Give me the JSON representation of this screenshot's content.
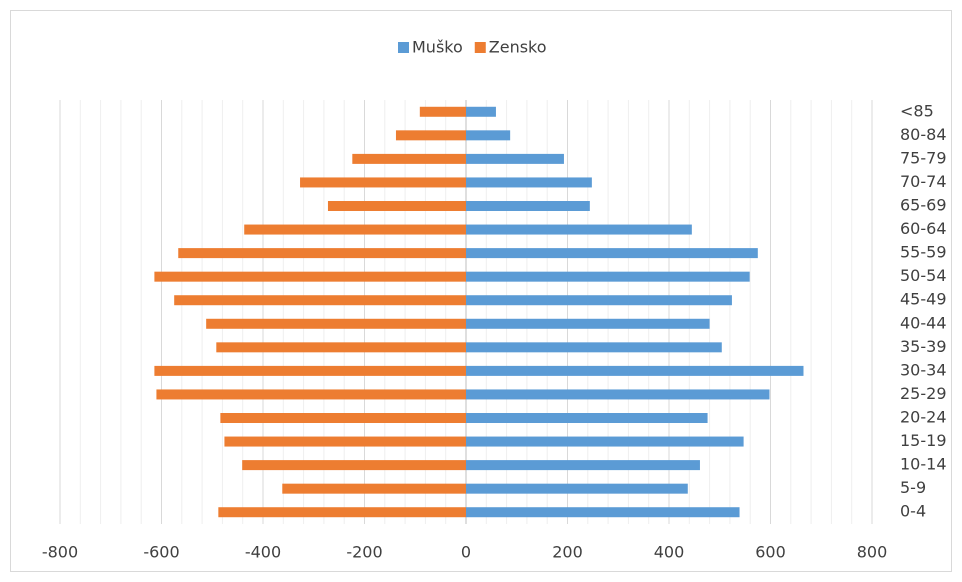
{
  "chart_data": {
    "type": "pyramid",
    "categories": [
      "0-4",
      "5-9",
      "10-14",
      "15-19",
      "20-24",
      "25-29",
      "30-34",
      "35-39",
      "40-44",
      "45-49",
      "50-54",
      "55-59",
      "60-64",
      "65-69",
      "70-74",
      "75-79",
      "80-84",
      "<85"
    ],
    "series": [
      {
        "name": "Muško",
        "color": "#5b9bd5",
        "values": [
          539,
          437,
          461,
          547,
          476,
          598,
          665,
          504,
          480,
          524,
          559,
          575,
          445,
          244,
          248,
          193,
          87,
          59
        ]
      },
      {
        "name": "Zensko",
        "color": "#ed7d31",
        "values": [
          -488,
          -362,
          -441,
          -476,
          -484,
          -610,
          -614,
          -492,
          -512,
          -575,
          -614,
          -567,
          -437,
          -272,
          -327,
          -224,
          -138,
          -91
        ]
      }
    ],
    "xlim": [
      -800,
      800
    ],
    "xticks": [
      -800,
      -600,
      -400,
      -200,
      0,
      200,
      400,
      600,
      800
    ],
    "xminorticks": [
      -760,
      -720,
      -680,
      -640,
      -560,
      -520,
      -480,
      -440,
      -360,
      -320,
      -280,
      -240,
      -160,
      -120,
      -80,
      -40,
      40,
      80,
      120,
      160,
      240,
      280,
      320,
      360,
      440,
      480,
      520,
      560,
      640,
      680,
      720,
      760
    ],
    "grid": true,
    "legend": "top"
  }
}
